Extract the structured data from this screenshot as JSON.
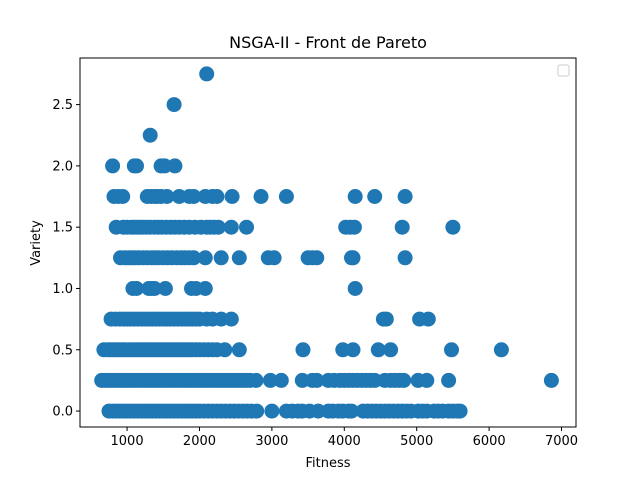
{
  "chart_data": {
    "type": "scatter",
    "title": "NSGA-II - Front de Pareto",
    "xlabel": "Fitness",
    "ylabel": "Variety",
    "xlim": [
      350,
      7200
    ],
    "ylim": [
      -0.13,
      2.88
    ],
    "xticks": [
      1000,
      2000,
      3000,
      4000,
      5000,
      6000,
      7000
    ],
    "yticks": [
      0.0,
      0.5,
      1.0,
      1.5,
      2.0,
      2.5
    ],
    "ytick_labels": [
      "0.0",
      "0.5",
      "1.0",
      "1.5",
      "2.0",
      "2.5"
    ],
    "color": "#1f77b4",
    "legend": "top-right, empty",
    "series": [
      {
        "points": [
          [
            2100,
            2.75
          ],
          [
            1650,
            2.5
          ],
          [
            1320,
            2.25
          ],
          [
            800,
            2.0
          ],
          [
            1100,
            2.0
          ],
          [
            1130,
            2.0
          ],
          [
            1470,
            2.0
          ],
          [
            1520,
            2.0
          ],
          [
            1660,
            2.0
          ],
          [
            820,
            1.75
          ],
          [
            880,
            1.75
          ],
          [
            940,
            1.75
          ],
          [
            1280,
            1.75
          ],
          [
            1330,
            1.75
          ],
          [
            1380,
            1.75
          ],
          [
            1420,
            1.75
          ],
          [
            1470,
            1.75
          ],
          [
            1550,
            1.75
          ],
          [
            1720,
            1.75
          ],
          [
            1860,
            1.75
          ],
          [
            1920,
            1.75
          ],
          [
            2080,
            1.75
          ],
          [
            2180,
            1.75
          ],
          [
            2240,
            1.75
          ],
          [
            2450,
            1.75
          ],
          [
            2850,
            1.75
          ],
          [
            3200,
            1.75
          ],
          [
            4150,
            1.75
          ],
          [
            4420,
            1.75
          ],
          [
            4840,
            1.75
          ],
          [
            850,
            1.5
          ],
          [
            950,
            1.5
          ],
          [
            1000,
            1.5
          ],
          [
            1060,
            1.5
          ],
          [
            1100,
            1.5
          ],
          [
            1140,
            1.5
          ],
          [
            1180,
            1.5
          ],
          [
            1220,
            1.5
          ],
          [
            1270,
            1.5
          ],
          [
            1320,
            1.5
          ],
          [
            1380,
            1.5
          ],
          [
            1430,
            1.5
          ],
          [
            1480,
            1.5
          ],
          [
            1540,
            1.5
          ],
          [
            1600,
            1.5
          ],
          [
            1660,
            1.5
          ],
          [
            1720,
            1.5
          ],
          [
            1790,
            1.5
          ],
          [
            1860,
            1.5
          ],
          [
            1940,
            1.5
          ],
          [
            2020,
            1.5
          ],
          [
            2100,
            1.5
          ],
          [
            2150,
            1.5
          ],
          [
            2200,
            1.5
          ],
          [
            2260,
            1.5
          ],
          [
            2440,
            1.5
          ],
          [
            2650,
            1.5
          ],
          [
            4020,
            1.5
          ],
          [
            4080,
            1.5
          ],
          [
            4140,
            1.5
          ],
          [
            4800,
            1.5
          ],
          [
            5500,
            1.5
          ],
          [
            910,
            1.25
          ],
          [
            970,
            1.25
          ],
          [
            1020,
            1.25
          ],
          [
            1070,
            1.25
          ],
          [
            1110,
            1.25
          ],
          [
            1160,
            1.25
          ],
          [
            1220,
            1.25
          ],
          [
            1280,
            1.25
          ],
          [
            1340,
            1.25
          ],
          [
            1390,
            1.25
          ],
          [
            1440,
            1.25
          ],
          [
            1500,
            1.25
          ],
          [
            1560,
            1.25
          ],
          [
            1620,
            1.25
          ],
          [
            1690,
            1.25
          ],
          [
            1750,
            1.25
          ],
          [
            1800,
            1.25
          ],
          [
            1860,
            1.25
          ],
          [
            1920,
            1.25
          ],
          [
            2080,
            1.25
          ],
          [
            2300,
            1.25
          ],
          [
            2550,
            1.25
          ],
          [
            2950,
            1.25
          ],
          [
            3030,
            1.25
          ],
          [
            3500,
            1.25
          ],
          [
            3560,
            1.25
          ],
          [
            3620,
            1.25
          ],
          [
            4100,
            1.25
          ],
          [
            4120,
            1.25
          ],
          [
            4840,
            1.25
          ],
          [
            1080,
            1.0
          ],
          [
            1130,
            1.0
          ],
          [
            1300,
            1.0
          ],
          [
            1340,
            1.0
          ],
          [
            1380,
            1.0
          ],
          [
            1530,
            1.0
          ],
          [
            1890,
            1.0
          ],
          [
            1950,
            1.0
          ],
          [
            2080,
            1.0
          ],
          [
            4150,
            1.0
          ],
          [
            780,
            0.75
          ],
          [
            840,
            0.75
          ],
          [
            900,
            0.75
          ],
          [
            950,
            0.75
          ],
          [
            1000,
            0.75
          ],
          [
            1050,
            0.75
          ],
          [
            1100,
            0.75
          ],
          [
            1150,
            0.75
          ],
          [
            1200,
            0.75
          ],
          [
            1250,
            0.75
          ],
          [
            1300,
            0.75
          ],
          [
            1350,
            0.75
          ],
          [
            1400,
            0.75
          ],
          [
            1450,
            0.75
          ],
          [
            1500,
            0.75
          ],
          [
            1550,
            0.75
          ],
          [
            1600,
            0.75
          ],
          [
            1650,
            0.75
          ],
          [
            1700,
            0.75
          ],
          [
            1750,
            0.75
          ],
          [
            1800,
            0.75
          ],
          [
            1850,
            0.75
          ],
          [
            1900,
            0.75
          ],
          [
            1950,
            0.75
          ],
          [
            2000,
            0.75
          ],
          [
            2100,
            0.75
          ],
          [
            2180,
            0.75
          ],
          [
            2300,
            0.75
          ],
          [
            2440,
            0.75
          ],
          [
            4540,
            0.75
          ],
          [
            4580,
            0.75
          ],
          [
            5040,
            0.75
          ],
          [
            5160,
            0.75
          ],
          [
            680,
            0.5
          ],
          [
            740,
            0.5
          ],
          [
            780,
            0.5
          ],
          [
            820,
            0.5
          ],
          [
            860,
            0.5
          ],
          [
            900,
            0.5
          ],
          [
            940,
            0.5
          ],
          [
            980,
            0.5
          ],
          [
            1020,
            0.5
          ],
          [
            1060,
            0.5
          ],
          [
            1100,
            0.5
          ],
          [
            1140,
            0.5
          ],
          [
            1180,
            0.5
          ],
          [
            1220,
            0.5
          ],
          [
            1260,
            0.5
          ],
          [
            1300,
            0.5
          ],
          [
            1340,
            0.5
          ],
          [
            1380,
            0.5
          ],
          [
            1420,
            0.5
          ],
          [
            1460,
            0.5
          ],
          [
            1500,
            0.5
          ],
          [
            1540,
            0.5
          ],
          [
            1580,
            0.5
          ],
          [
            1620,
            0.5
          ],
          [
            1660,
            0.5
          ],
          [
            1700,
            0.5
          ],
          [
            1740,
            0.5
          ],
          [
            1780,
            0.5
          ],
          [
            1820,
            0.5
          ],
          [
            1860,
            0.5
          ],
          [
            1900,
            0.5
          ],
          [
            1950,
            0.5
          ],
          [
            2000,
            0.5
          ],
          [
            2060,
            0.5
          ],
          [
            2120,
            0.5
          ],
          [
            2180,
            0.5
          ],
          [
            2240,
            0.5
          ],
          [
            2350,
            0.5
          ],
          [
            2550,
            0.5
          ],
          [
            3430,
            0.5
          ],
          [
            3980,
            0.5
          ],
          [
            4120,
            0.5
          ],
          [
            4470,
            0.5
          ],
          [
            4640,
            0.5
          ],
          [
            5480,
            0.5
          ],
          [
            6170,
            0.5
          ],
          [
            650,
            0.25
          ],
          [
            700,
            0.25
          ],
          [
            750,
            0.25
          ],
          [
            800,
            0.25
          ],
          [
            850,
            0.25
          ],
          [
            900,
            0.25
          ],
          [
            950,
            0.25
          ],
          [
            1000,
            0.25
          ],
          [
            1050,
            0.25
          ],
          [
            1100,
            0.25
          ],
          [
            1150,
            0.25
          ],
          [
            1200,
            0.25
          ],
          [
            1250,
            0.25
          ],
          [
            1300,
            0.25
          ],
          [
            1350,
            0.25
          ],
          [
            1400,
            0.25
          ],
          [
            1450,
            0.25
          ],
          [
            1500,
            0.25
          ],
          [
            1550,
            0.25
          ],
          [
            1600,
            0.25
          ],
          [
            1650,
            0.25
          ],
          [
            1700,
            0.25
          ],
          [
            1750,
            0.25
          ],
          [
            1800,
            0.25
          ],
          [
            1850,
            0.25
          ],
          [
            1900,
            0.25
          ],
          [
            1950,
            0.25
          ],
          [
            2000,
            0.25
          ],
          [
            2050,
            0.25
          ],
          [
            2100,
            0.25
          ],
          [
            2150,
            0.25
          ],
          [
            2200,
            0.25
          ],
          [
            2250,
            0.25
          ],
          [
            2300,
            0.25
          ],
          [
            2350,
            0.25
          ],
          [
            2400,
            0.25
          ],
          [
            2450,
            0.25
          ],
          [
            2500,
            0.25
          ],
          [
            2550,
            0.25
          ],
          [
            2600,
            0.25
          ],
          [
            2650,
            0.25
          ],
          [
            2700,
            0.25
          ],
          [
            2780,
            0.25
          ],
          [
            2980,
            0.25
          ],
          [
            3130,
            0.25
          ],
          [
            3420,
            0.25
          ],
          [
            3560,
            0.25
          ],
          [
            3620,
            0.25
          ],
          [
            3780,
            0.25
          ],
          [
            3860,
            0.25
          ],
          [
            3940,
            0.25
          ],
          [
            4000,
            0.25
          ],
          [
            4060,
            0.25
          ],
          [
            4120,
            0.25
          ],
          [
            4180,
            0.25
          ],
          [
            4240,
            0.25
          ],
          [
            4300,
            0.25
          ],
          [
            4360,
            0.25
          ],
          [
            4420,
            0.25
          ],
          [
            4560,
            0.25
          ],
          [
            4640,
            0.25
          ],
          [
            4700,
            0.25
          ],
          [
            4760,
            0.25
          ],
          [
            4820,
            0.25
          ],
          [
            5020,
            0.25
          ],
          [
            5140,
            0.25
          ],
          [
            5440,
            0.25
          ],
          [
            6860,
            0.25
          ],
          [
            750,
            0.0
          ],
          [
            800,
            0.0
          ],
          [
            850,
            0.0
          ],
          [
            900,
            0.0
          ],
          [
            950,
            0.0
          ],
          [
            1000,
            0.0
          ],
          [
            1050,
            0.0
          ],
          [
            1100,
            0.0
          ],
          [
            1150,
            0.0
          ],
          [
            1200,
            0.0
          ],
          [
            1250,
            0.0
          ],
          [
            1300,
            0.0
          ],
          [
            1350,
            0.0
          ],
          [
            1400,
            0.0
          ],
          [
            1450,
            0.0
          ],
          [
            1500,
            0.0
          ],
          [
            1550,
            0.0
          ],
          [
            1600,
            0.0
          ],
          [
            1650,
            0.0
          ],
          [
            1700,
            0.0
          ],
          [
            1750,
            0.0
          ],
          [
            1800,
            0.0
          ],
          [
            1850,
            0.0
          ],
          [
            1900,
            0.0
          ],
          [
            1950,
            0.0
          ],
          [
            2000,
            0.0
          ],
          [
            2060,
            0.0
          ],
          [
            2120,
            0.0
          ],
          [
            2180,
            0.0
          ],
          [
            2240,
            0.0
          ],
          [
            2300,
            0.0
          ],
          [
            2360,
            0.0
          ],
          [
            2420,
            0.0
          ],
          [
            2480,
            0.0
          ],
          [
            2540,
            0.0
          ],
          [
            2600,
            0.0
          ],
          [
            2660,
            0.0
          ],
          [
            2720,
            0.0
          ],
          [
            2790,
            0.0
          ],
          [
            3000,
            0.0
          ],
          [
            3200,
            0.0
          ],
          [
            3280,
            0.0
          ],
          [
            3360,
            0.0
          ],
          [
            3420,
            0.0
          ],
          [
            3520,
            0.0
          ],
          [
            3640,
            0.0
          ],
          [
            3780,
            0.0
          ],
          [
            3840,
            0.0
          ],
          [
            3920,
            0.0
          ],
          [
            3980,
            0.0
          ],
          [
            4060,
            0.0
          ],
          [
            4100,
            0.0
          ],
          [
            4260,
            0.0
          ],
          [
            4320,
            0.0
          ],
          [
            4380,
            0.0
          ],
          [
            4440,
            0.0
          ],
          [
            4500,
            0.0
          ],
          [
            4560,
            0.0
          ],
          [
            4620,
            0.0
          ],
          [
            4680,
            0.0
          ],
          [
            4740,
            0.0
          ],
          [
            4800,
            0.0
          ],
          [
            4860,
            0.0
          ],
          [
            4920,
            0.0
          ],
          [
            5020,
            0.0
          ],
          [
            5080,
            0.0
          ],
          [
            5140,
            0.0
          ],
          [
            5240,
            0.0
          ],
          [
            5300,
            0.0
          ],
          [
            5360,
            0.0
          ],
          [
            5440,
            0.0
          ],
          [
            5500,
            0.0
          ],
          [
            5560,
            0.0
          ],
          [
            5600,
            0.0
          ]
        ]
      }
    ]
  }
}
